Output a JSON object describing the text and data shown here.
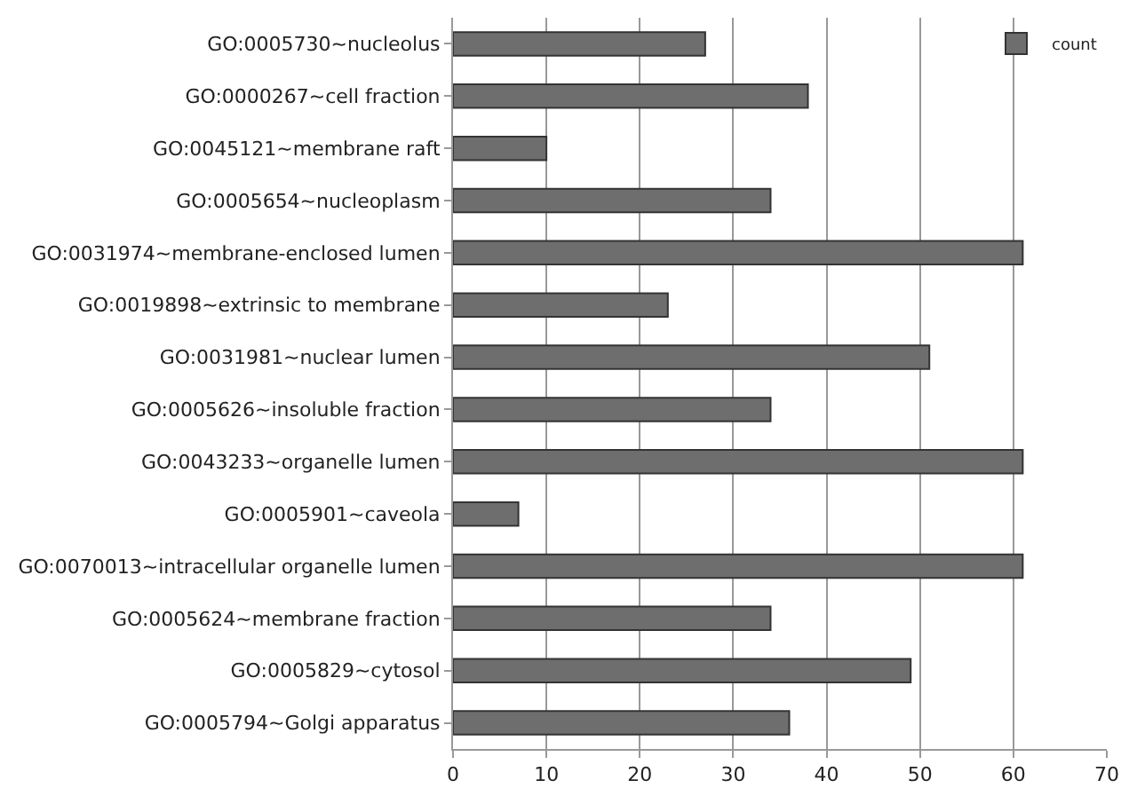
{
  "chart_data": {
    "type": "bar",
    "orientation": "horizontal",
    "categories": [
      "GO:0005730~nucleolus",
      "GO:0000267~cell fraction",
      "GO:0045121~membrane raft",
      "GO:0005654~nucleoplasm",
      "GO:0031974~membrane-enclosed lumen",
      "GO:0019898~extrinsic to membrane",
      "GO:0031981~nuclear lumen",
      "GO:0005626~insoluble fraction",
      "GO:0043233~organelle lumen",
      "GO:0005901~caveola",
      "GO:0070013~intracellular organelle lumen",
      "GO:0005624~membrane fraction",
      "GO:0005829~cytosol",
      "GO:0005794~Golgi apparatus"
    ],
    "series": [
      {
        "name": "count",
        "color": "#6e6e6e",
        "values": [
          27,
          38,
          10,
          34,
          61,
          23,
          51,
          34,
          61,
          7,
          61,
          34,
          49,
          36
        ]
      }
    ],
    "xlim": [
      0,
      70
    ],
    "xticks": [
      0,
      10,
      20,
      30,
      40,
      50,
      60,
      70
    ],
    "grid": "x",
    "legend": "top right"
  }
}
